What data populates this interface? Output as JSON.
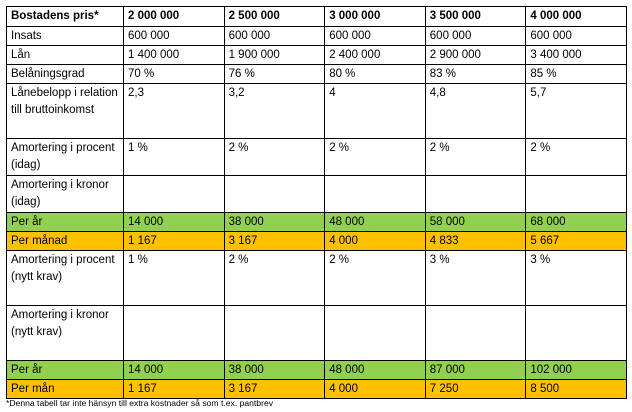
{
  "header": {
    "label": "Bostadens pris*",
    "prices": [
      "2 000 000",
      "2 500 000",
      "3 000 000",
      "3 500 000",
      "4 000 000"
    ]
  },
  "rows": {
    "insats": {
      "label": "Insats",
      "values": [
        "600 000",
        "600 000",
        "600 000",
        "600 000",
        "600 000"
      ]
    },
    "lan": {
      "label": "Lån",
      "values": [
        "1 400 000",
        "1 900 000",
        "2 400 000",
        "2 900 000",
        "3 400 000"
      ]
    },
    "belaningsgrad": {
      "label": "Belåningsgrad",
      "values": [
        "70 %",
        "76 %",
        "80 %",
        "83 %",
        "85 %"
      ]
    },
    "lanebelopp": {
      "label": "Lånebelopp i relation till bruttoinkomst",
      "values": [
        "2,3",
        "3,2",
        "4",
        "4,8",
        "5,7"
      ]
    },
    "amort_procent_idag": {
      "label": "Amortering i procent (idag)",
      "values": [
        "1 %",
        "2 %",
        "2 %",
        "2 %",
        "2 %"
      ]
    },
    "amort_kronor_idag": {
      "label": "Amortering i kronor (idag)",
      "values": [
        "",
        "",
        "",
        "",
        ""
      ]
    },
    "per_ar_idag": {
      "label": "Per år",
      "values": [
        "14 000",
        "38 000",
        "48 000",
        "58 000",
        "68 000"
      ]
    },
    "per_manad_idag": {
      "label": "Per månad",
      "values": [
        "1 167",
        "3 167",
        "4 000",
        "4 833",
        "5 667"
      ]
    },
    "amort_procent_nytt": {
      "label": "Amortering i procent (nytt krav)",
      "values": [
        "1 %",
        "2 %",
        "2 %",
        "3 %",
        "3 %"
      ]
    },
    "amort_kronor_nytt": {
      "label": "Amortering i kronor (nytt krav)",
      "values": [
        "",
        "",
        "",
        "",
        ""
      ]
    },
    "per_ar_nytt": {
      "label": "Per år",
      "values": [
        "14 000",
        "38 000",
        "48 000",
        "87 000",
        "102 000"
      ]
    },
    "per_man_nytt": {
      "label": "Per mån",
      "values": [
        "1 167",
        "3 167",
        "4 000",
        "7 250",
        "8 500"
      ]
    }
  },
  "colors": {
    "green": "#92d050",
    "orange": "#ffc000"
  },
  "footnote": "*Denna tabell tar inte hänsyn till extra kostnader så som t.ex. pantbrev"
}
